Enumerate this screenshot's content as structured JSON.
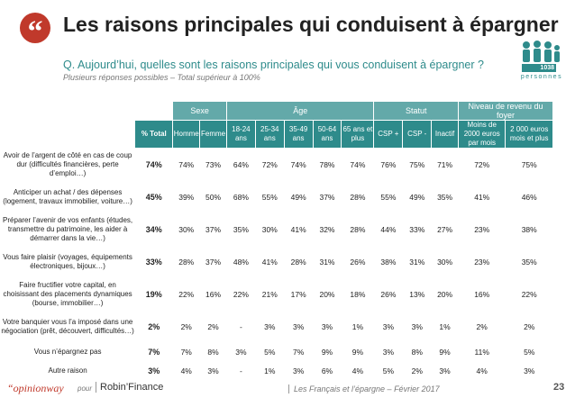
{
  "header": {
    "title": "Les raisons principales qui conduisent à épargner",
    "question": "Q. Aujourd’hui, quelles sont les raisons principales qui vous conduisent à épargner ?",
    "subtitle": "Plusieurs réponses possibles – Total supérieur à 100%",
    "sample_count": "1038",
    "sample_label": "personnes"
  },
  "table": {
    "groups": [
      "Sexe",
      "Âge",
      "Statut",
      "Niveau de revenu du foyer"
    ],
    "columns": [
      "% Total",
      "Homme",
      "Femme",
      "18-24 ans",
      "25-34 ans",
      "35-49 ans",
      "50-64 ans",
      "65 ans et plus",
      "CSP +",
      "CSP -",
      "Inactif",
      "Moins de 2000 euros par mois",
      "2 000 euros mois et plus"
    ],
    "rows": [
      {
        "label": "Avoir de l’argent de côté en cas de coup dur (difficultés financières, perte d’emploi…)",
        "values": [
          "74%",
          "74%",
          "73%",
          "64%",
          "72%",
          "74%",
          "78%",
          "74%",
          "76%",
          "75%",
          "71%",
          "72%",
          "75%"
        ]
      },
      {
        "label": "Anticiper un achat / des dépenses (logement, travaux immobilier, voiture…)",
        "values": [
          "45%",
          "39%",
          "50%",
          "68%",
          "55%",
          "49%",
          "37%",
          "28%",
          "55%",
          "49%",
          "35%",
          "41%",
          "46%"
        ]
      },
      {
        "label": "Préparer l’avenir de vos enfants (études, transmettre du patrimoine, les aider à démarrer dans la vie…)",
        "values": [
          "34%",
          "30%",
          "37%",
          "35%",
          "30%",
          "41%",
          "32%",
          "28%",
          "44%",
          "33%",
          "27%",
          "23%",
          "38%"
        ]
      },
      {
        "label": "Vous faire plaisir (voyages, équipements électroniques, bijoux…)",
        "values": [
          "33%",
          "28%",
          "37%",
          "48%",
          "41%",
          "28%",
          "31%",
          "26%",
          "38%",
          "31%",
          "30%",
          "23%",
          "35%"
        ]
      },
      {
        "label": "Faire fructifier votre capital, en choisissant des placements dynamiques (bourse, immobilier…)",
        "values": [
          "19%",
          "22%",
          "16%",
          "22%",
          "21%",
          "17%",
          "20%",
          "18%",
          "26%",
          "13%",
          "20%",
          "16%",
          "22%"
        ]
      },
      {
        "label": "Votre banquier vous l’a imposé dans une négociation (prêt, découvert, difficultés…)",
        "values": [
          "2%",
          "2%",
          "2%",
          "-",
          "3%",
          "3%",
          "3%",
          "1%",
          "3%",
          "3%",
          "1%",
          "2%",
          "2%"
        ]
      },
      {
        "label": "Vous n’épargnez pas",
        "values": [
          "7%",
          "7%",
          "8%",
          "3%",
          "5%",
          "7%",
          "9%",
          "9%",
          "3%",
          "8%",
          "9%",
          "11%",
          "5%"
        ]
      },
      {
        "label": "Autre raison",
        "values": [
          "3%",
          "4%",
          "3%",
          "-",
          "1%",
          "3%",
          "6%",
          "4%",
          "5%",
          "2%",
          "3%",
          "4%",
          "3%"
        ]
      }
    ]
  },
  "footer": {
    "brand": "“opinionway",
    "pour": "pour",
    "client": "Robin’Finance",
    "center": "Les Français et l’épargne – Février 2017",
    "page": "23"
  },
  "colors": {
    "accent": "#2e8b8b",
    "accent_light": "#63a9a9",
    "brand_red": "#c0392b"
  },
  "icons": {
    "quote": "quote-icon",
    "people": "people-icon"
  }
}
